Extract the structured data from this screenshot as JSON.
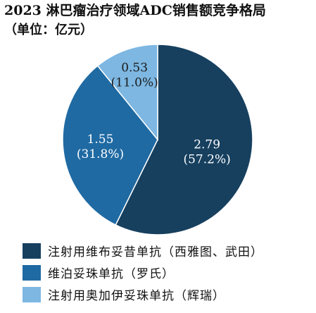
{
  "header": {
    "title": "2023 淋巴瘤治疗领域ADC销售额竞争格局",
    "subtitle": "（单位：亿元）"
  },
  "chart_data": {
    "type": "pie",
    "title": "2023 淋巴瘤治疗领域ADC销售额竞争格局",
    "unit": "（单位：亿元）",
    "slices": [
      {
        "label": "注射用维布妥昔单抗（西雅图、武田）",
        "value": 2.79,
        "percent_label": "(57.2%)",
        "value_label": "2.79",
        "color": "#17405f"
      },
      {
        "label": "维泊妥珠单抗（罗氏）",
        "value": 1.55,
        "percent_label": "(31.8%)",
        "value_label": "1.55",
        "color": "#1f6aa3"
      },
      {
        "label": "注射用奥加伊妥珠单抗（辉瑞）",
        "value": 0.53,
        "percent_label": "(11.0%)",
        "value_label": "0.53",
        "color": "#7db7e2"
      }
    ],
    "start_angle_deg": 0,
    "direction": "clockwise",
    "legend_position": "bottom"
  }
}
